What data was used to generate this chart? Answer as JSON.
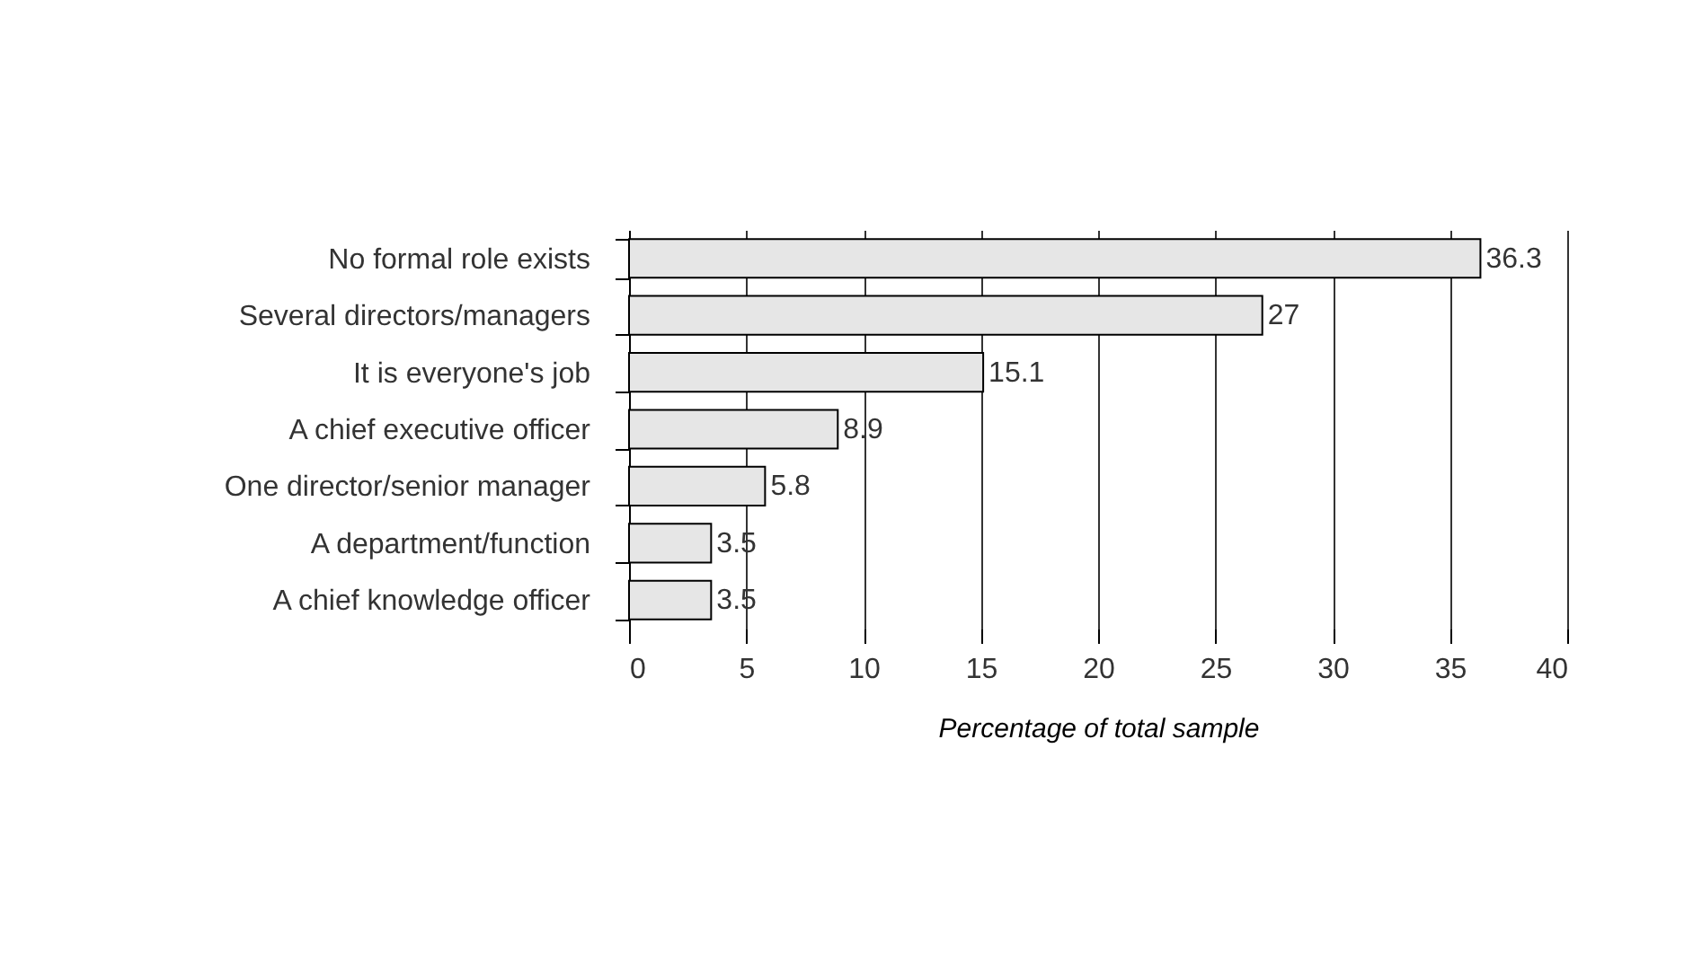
{
  "chart_data": {
    "type": "bar",
    "orientation": "horizontal",
    "xlabel": "Percentage of total sample",
    "categories": [
      "No formal role exists",
      "Several directors/managers",
      "It is everyone's job",
      "A chief executive officer",
      "One director/senior manager",
      "A department/function",
      "A chief knowledge officer"
    ],
    "values": [
      36.3,
      27,
      15.1,
      8.9,
      5.8,
      3.5,
      3.5
    ],
    "color": "#e6e6e6",
    "xlim": [
      0,
      40
    ],
    "xticks": [
      0,
      5,
      10,
      15,
      20,
      25,
      30,
      35,
      40
    ],
    "grid": "x",
    "data_labels": true
  }
}
